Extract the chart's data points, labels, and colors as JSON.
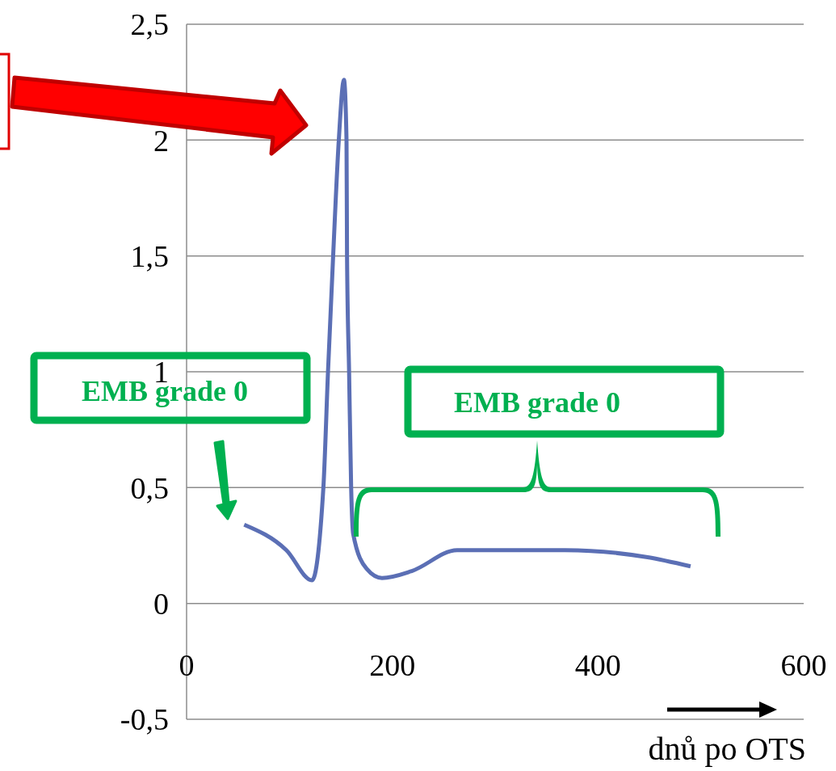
{
  "chart_data": {
    "type": "line",
    "xlabel": "dnů po OTS",
    "x": [
      56,
      97,
      122,
      133,
      137.5,
      142.5,
      148,
      153,
      155.5,
      156,
      158,
      160,
      162,
      175,
      190,
      219,
      263,
      300,
      368,
      447,
      490
    ],
    "series": [
      {
        "color": "#5b6fb5",
        "values": [
          0.34,
          0.23,
          0.1,
          0.5,
          1,
          1.5,
          2,
          2.26,
          2,
          1.5,
          1,
          0.5,
          0.3,
          0.15,
          0.11,
          0.14,
          0.23,
          0.23,
          0.23,
          0.2,
          0.16
        ]
      }
    ],
    "xlim": [
      0,
      600
    ],
    "xticks": [
      0,
      200,
      400,
      600
    ],
    "ylim": [
      -0.5,
      2.5
    ],
    "yticks": [
      {
        "value": -0.5,
        "label": "-0,5"
      },
      {
        "value": 0,
        "label": "0"
      },
      {
        "value": 0.5,
        "label": "0,5"
      },
      {
        "value": 1,
        "label": "1"
      },
      {
        "value": 1.5,
        "label": "1,5"
      },
      {
        "value": 2,
        "label": "2"
      },
      {
        "value": 2.5,
        "label": "2,5"
      }
    ],
    "grid": "y",
    "marker": "none",
    "line_style": "solid",
    "annotations": [
      "EMB grade 0",
      "EMB grade 0"
    ]
  }
}
